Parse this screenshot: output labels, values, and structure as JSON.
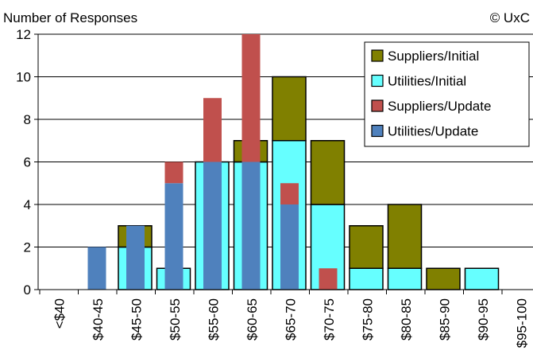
{
  "header": {
    "ylabel": "Number of Responses",
    "copyright": "© UxC"
  },
  "chart_data": {
    "type": "bar",
    "title": "",
    "xlabel": "",
    "ylabel": "Number of Responses",
    "ylim": [
      0,
      12
    ],
    "yticks": [
      0,
      2,
      4,
      6,
      8,
      10,
      12
    ],
    "grid": "horizontal",
    "legend_position": "top-right",
    "categories": [
      "<$40",
      "$40-45",
      "$45-50",
      "$50-55",
      "$55-60",
      "$60-65",
      "$65-70",
      "$70-75",
      "$75-80",
      "$80-85",
      "$85-90",
      "$90-95",
      "$95-100"
    ],
    "groups": [
      {
        "stack": "Initial",
        "series": [
          {
            "name": "Utilities/Initial",
            "color": "#66FFFF",
            "values": [
              0,
              0,
              2,
              1,
              6,
              6,
              7,
              4,
              1,
              1,
              0,
              1,
              0
            ]
          },
          {
            "name": "Suppliers/Initial",
            "color": "#808000",
            "values": [
              0,
              0,
              1,
              0,
              0,
              1,
              3,
              3,
              2,
              3,
              1,
              0,
              0
            ]
          }
        ]
      },
      {
        "stack": "Update",
        "series": [
          {
            "name": "Utilities/Update",
            "color": "#4F81BD",
            "values": [
              0,
              2,
              3,
              5,
              6,
              6,
              4,
              0,
              0,
              0,
              0,
              0,
              0
            ]
          },
          {
            "name": "Suppliers/Update",
            "color": "#C0504D",
            "values": [
              0,
              0,
              0,
              1,
              3,
              6,
              1,
              1,
              0,
              0,
              0,
              0,
              0
            ]
          }
        ]
      }
    ],
    "legend": [
      {
        "name": "Suppliers/Initial",
        "color": "#808000"
      },
      {
        "name": "Utilities/Initial",
        "color": "#66FFFF"
      },
      {
        "name": "Suppliers/Update",
        "color": "#C0504D"
      },
      {
        "name": "Utilities/Update",
        "color": "#4F81BD"
      }
    ]
  }
}
